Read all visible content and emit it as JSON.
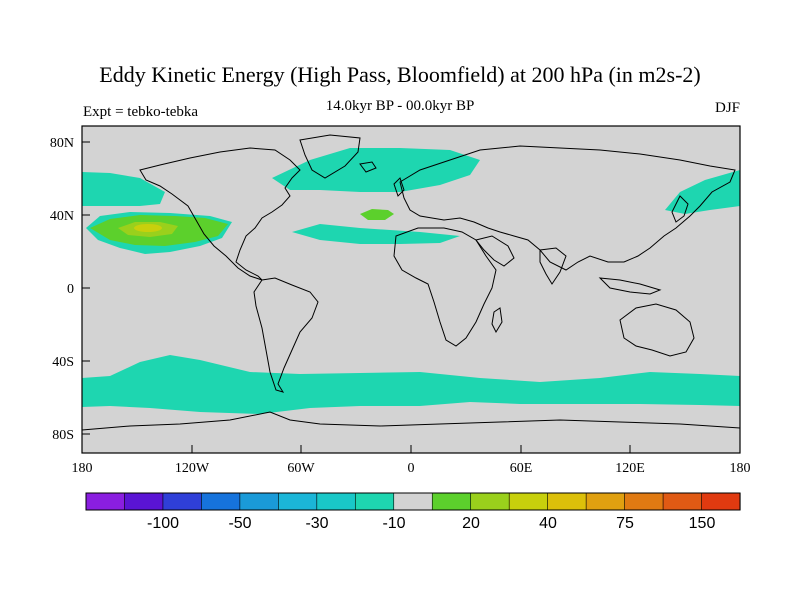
{
  "title": "Eddy Kinetic Energy (High Pass, Bloomfield) at 200 hPa (in m2s-2)",
  "subtitle": "14.0kyr BP - 00.0kyr BP",
  "experiment": "Expt = tebko-tebka",
  "season": "DJF",
  "lat_ticks": [
    "80N",
    "40N",
    "0",
    "40S",
    "80S"
  ],
  "lon_ticks": [
    "180",
    "120W",
    "60W",
    "0",
    "60E",
    "120E",
    "180"
  ],
  "colorbar": {
    "colors": [
      "#8a1ee0",
      "#5a14d4",
      "#2f3fd8",
      "#1673dc",
      "#1a9ad8",
      "#1bb6d8",
      "#19c8c8",
      "#1ed6b0",
      "#d3d3d3",
      "#5cd02c",
      "#9ad01c",
      "#c8d00c",
      "#dcc00a",
      "#e0a010",
      "#e07a12",
      "#e05a14",
      "#e03a10"
    ],
    "labels": [
      "-100",
      "-50",
      "-30",
      "-10",
      "20",
      "40",
      "75",
      "150"
    ]
  },
  "map": {
    "land_color": "#d3d3d3",
    "anomaly_color": "#1ed6b0",
    "positive_color": "#5cd02c",
    "peak_color": "#c8d00c"
  }
}
